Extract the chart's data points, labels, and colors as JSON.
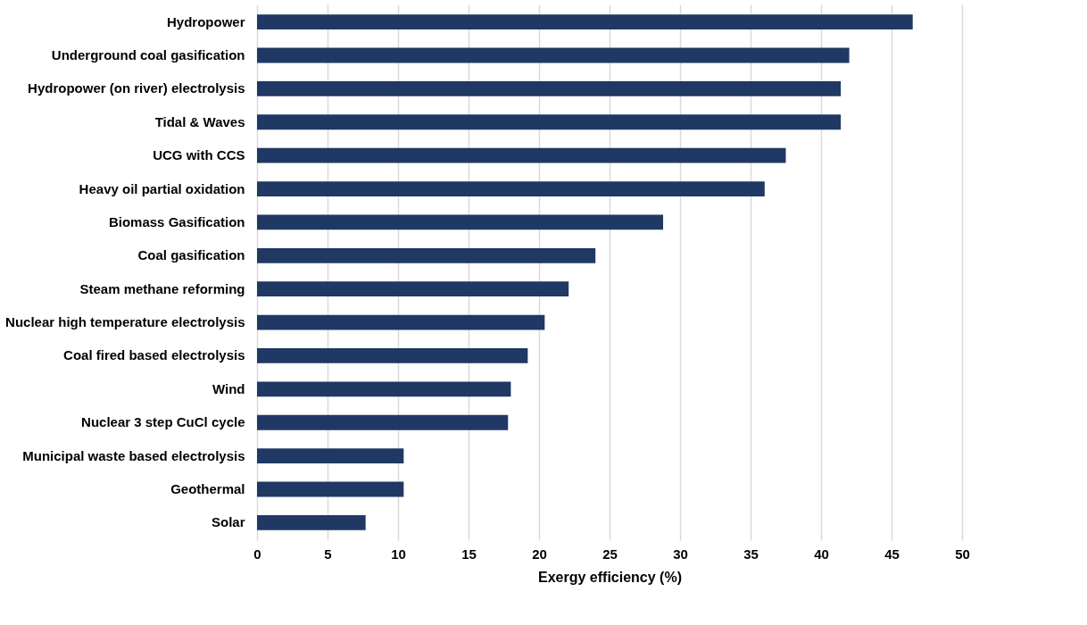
{
  "chart_data": {
    "type": "bar",
    "orientation": "horizontal",
    "xlabel": "Exergy efficiency (%)",
    "categories": [
      "Hydropower",
      "Underground coal gasification",
      "Hydropower (on river) electrolysis",
      "Tidal & Waves",
      "UCG with CCS",
      "Heavy oil partial oxidation",
      "Biomass Gasification",
      "Coal gasification",
      "Steam methane reforming",
      "Nuclear high temperature electrolysis",
      "Coal fired based electrolysis",
      "Wind",
      "Nuclear 3 step CuCl cycle",
      "Municipal waste based electrolysis",
      "Geothermal",
      "Solar"
    ],
    "values": [
      46.5,
      42.0,
      41.4,
      41.4,
      37.5,
      36.0,
      28.8,
      24.0,
      22.1,
      20.4,
      19.2,
      18.0,
      17.8,
      10.4,
      10.4,
      7.7
    ],
    "color": "#1f3864",
    "xlim": [
      0,
      50
    ],
    "xticks": [
      0,
      5,
      10,
      15,
      20,
      25,
      30,
      35,
      40,
      45,
      50
    ],
    "grid": "x"
  }
}
